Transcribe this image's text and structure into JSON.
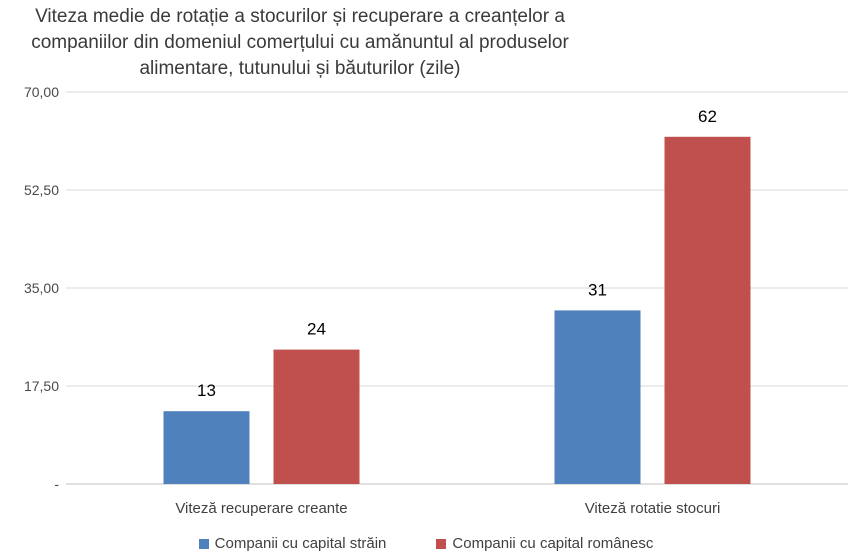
{
  "chart_data": {
    "type": "bar",
    "title_lines": [
      "Viteza medie de rotație a stocurilor și recuperare a creanțelor a",
      "companiilor din domeniul comerțului cu amănuntul al produselor",
      "alimentare, tutunului și băuturilor (zile)"
    ],
    "categories": [
      "Viteză recuperare creante",
      "Viteză rotatie stocuri"
    ],
    "series": [
      {
        "name": "Companii cu capital străin",
        "color": "#4f81bd",
        "values": [
          13,
          31
        ]
      },
      {
        "name": "Companii cu capital românesc",
        "color": "#c0504d",
        "values": [
          24,
          62
        ]
      }
    ],
    "y_ticks": [
      0,
      17.5,
      35,
      52.5,
      70
    ],
    "y_tick_labels": [
      "-",
      "17,50",
      "35,00",
      "52,50",
      "70,00"
    ],
    "ylim": [
      0,
      70
    ],
    "grid": true,
    "legend_position": "bottom"
  }
}
